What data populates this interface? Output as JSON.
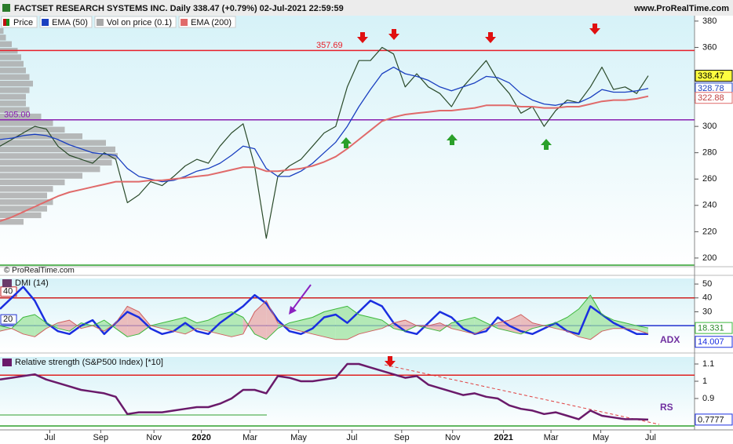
{
  "chart_data": [
    {
      "type": "line",
      "title": "FACTSET RESEARCH SYSTEMS INC. Daily 338.47 (+0.79%) 02-Jul-2021 22:59:59",
      "source": "www.ProRealTime.com",
      "watermark": "© ProRealTime.com",
      "xlim": [
        0,
        60
      ],
      "xticks": [
        {
          "value": 4.3,
          "label": "Jul"
        },
        {
          "value": 8.7,
          "label": "Sep"
        },
        {
          "value": 13.3,
          "label": "Nov"
        },
        {
          "value": 17.4,
          "label": "2020"
        },
        {
          "value": 21.6,
          "label": "Mar"
        },
        {
          "value": 25.8,
          "label": "May"
        },
        {
          "value": 30.4,
          "label": "Jul"
        },
        {
          "value": 34.7,
          "label": "Sep"
        },
        {
          "value": 39.1,
          "label": "Nov"
        },
        {
          "value": 43.5,
          "label": "2021"
        },
        {
          "value": 47.6,
          "label": "Mar"
        },
        {
          "value": 51.9,
          "label": "May"
        },
        {
          "value": 56.2,
          "label": "Jul"
        }
      ],
      "ylim": [
        193.4,
        384.1
      ],
      "yticks": [
        200,
        220,
        240,
        260,
        280,
        300,
        320,
        340,
        360,
        380
      ],
      "series": [
        {
          "name": "Price",
          "color": "#2a4a2a",
          "values": [
            285,
            290,
            295,
            300,
            298,
            285,
            278,
            275,
            272,
            280,
            275,
            242,
            248,
            258,
            255,
            262,
            270,
            275,
            272,
            285,
            295,
            302,
            270,
            215,
            262,
            270,
            275,
            285,
            295,
            300,
            330,
            350,
            350,
            360,
            355,
            330,
            340,
            330,
            325,
            315,
            330,
            340,
            350,
            335,
            325,
            310,
            315,
            300,
            312,
            320,
            318,
            330,
            345,
            328,
            330,
            325,
            338.47
          ]
        },
        {
          "name": "EMA (50)",
          "color": "#1a3fc0",
          "values": [
            290,
            291,
            293,
            294,
            293,
            290,
            286,
            283,
            280,
            279,
            278,
            268,
            262,
            260,
            258,
            259,
            262,
            266,
            268,
            272,
            278,
            285,
            283,
            268,
            262,
            262,
            266,
            272,
            280,
            288,
            300,
            315,
            328,
            340,
            345,
            340,
            338,
            335,
            330,
            327,
            330,
            333,
            338,
            337,
            333,
            325,
            320,
            317,
            316,
            318,
            318,
            322,
            328,
            326,
            326,
            327,
            328.78
          ]
        },
        {
          "name": "EMA (200)",
          "color": "#e06a6a",
          "values": [
            228,
            231,
            235,
            239,
            243,
            247,
            250,
            252,
            254,
            256,
            258,
            258,
            258,
            259,
            259,
            260,
            261,
            262,
            263,
            265,
            267,
            269,
            269,
            266,
            266,
            267,
            268,
            270,
            273,
            277,
            283,
            290,
            297,
            304,
            307,
            309,
            310,
            311,
            312,
            312,
            313,
            314,
            316,
            316,
            316,
            315,
            315,
            314,
            314,
            315,
            315,
            317,
            319,
            320,
            320,
            321,
            322.88
          ]
        }
      ],
      "volume_profile": {
        "name": "Vol on price (0.1)",
        "color": "#a8a8a8",
        "bins": [
          225,
          230,
          235,
          240,
          245,
          250,
          255,
          260,
          265,
          270,
          275,
          280,
          285,
          290,
          295,
          300,
          305,
          310,
          315,
          320,
          325,
          330,
          335,
          340,
          345,
          350,
          355,
          360,
          365,
          370,
          375
        ],
        "values": [
          20,
          35,
          40,
          45,
          40,
          45,
          55,
          70,
          85,
          95,
          100,
          98,
          90,
          70,
          55,
          45,
          35,
          25,
          22,
          22,
          25,
          28,
          25,
          22,
          20,
          18,
          15,
          10,
          5,
          3
        ]
      },
      "levels": [
        {
          "value": 357.69,
          "color": "#e8202a"
        },
        {
          "value": 305,
          "label": "305.00",
          "color": "#8a1fb0"
        }
      ]
    },
    {
      "type": "line",
      "title": "DMI (14)",
      "ylim": [
        2,
        54
      ],
      "yticks": [
        30,
        40,
        50
      ],
      "series": [
        {
          "name": "ADX",
          "color": "#1a2ee0",
          "values": [
            32,
            40,
            48,
            38,
            22,
            16,
            14,
            20,
            24,
            14,
            22,
            30,
            26,
            18,
            14,
            16,
            22,
            16,
            14,
            22,
            28,
            34,
            42,
            36,
            24,
            16,
            14,
            18,
            26,
            28,
            22,
            30,
            38,
            34,
            22,
            16,
            14,
            22,
            30,
            26,
            18,
            14,
            16,
            26,
            20,
            16,
            14,
            18,
            22,
            16,
            14,
            34,
            28,
            22,
            18,
            14,
            14.007
          ]
        },
        {
          "color": "#3cb83c",
          "values": [
            20,
            18,
            26,
            28,
            22,
            18,
            16,
            22,
            20,
            24,
            18,
            12,
            14,
            20,
            22,
            24,
            26,
            22,
            24,
            28,
            30,
            26,
            14,
            10,
            18,
            22,
            24,
            26,
            30,
            32,
            34,
            28,
            26,
            24,
            18,
            16,
            20,
            18,
            16,
            22,
            24,
            26,
            22,
            18,
            16,
            14,
            18,
            20,
            22,
            26,
            32,
            42,
            28,
            24,
            22,
            20,
            18.331
          ]
        },
        {
          "color": "#d06060",
          "values": [
            16,
            18,
            14,
            12,
            18,
            22,
            24,
            18,
            20,
            16,
            22,
            34,
            30,
            20,
            18,
            16,
            14,
            18,
            16,
            14,
            12,
            14,
            30,
            38,
            22,
            18,
            16,
            14,
            12,
            10,
            10,
            14,
            16,
            18,
            22,
            24,
            20,
            20,
            22,
            18,
            16,
            14,
            18,
            22,
            24,
            28,
            22,
            20,
            18,
            16,
            12,
            10,
            16,
            18,
            18,
            17,
            14.2
          ]
        }
      ],
      "levels": [
        {
          "value": 40,
          "color": "#d02020"
        },
        {
          "value": 20,
          "color": "#2030d0"
        }
      ]
    },
    {
      "type": "line",
      "title": "Relative strength (S&P500 Index) [*10]",
      "annotation": "RS",
      "ylim": [
        0.718,
        1.141
      ],
      "yticks": [
        0.9,
        1,
        1.1
      ],
      "series": [
        {
          "color": "#6a1a6a",
          "values": [
            1.01,
            1.02,
            1.03,
            1.04,
            1.01,
            0.99,
            0.97,
            0.95,
            0.94,
            0.93,
            0.91,
            0.81,
            0.82,
            0.82,
            0.82,
            0.83,
            0.84,
            0.85,
            0.85,
            0.87,
            0.9,
            0.95,
            0.95,
            0.93,
            1.03,
            1.02,
            1,
            1,
            1.01,
            1.02,
            1.1,
            1.1,
            1.08,
            1.06,
            1.04,
            1.02,
            1.03,
            0.98,
            0.96,
            0.94,
            0.92,
            0.93,
            0.91,
            0.9,
            0.86,
            0.84,
            0.83,
            0.81,
            0.82,
            0.8,
            0.78,
            0.83,
            0.8,
            0.79,
            0.78,
            0.78,
            0.7777
          ]
        }
      ],
      "levels": [
        {
          "value": 1.035,
          "color": "#e02020"
        }
      ]
    }
  ]
}
